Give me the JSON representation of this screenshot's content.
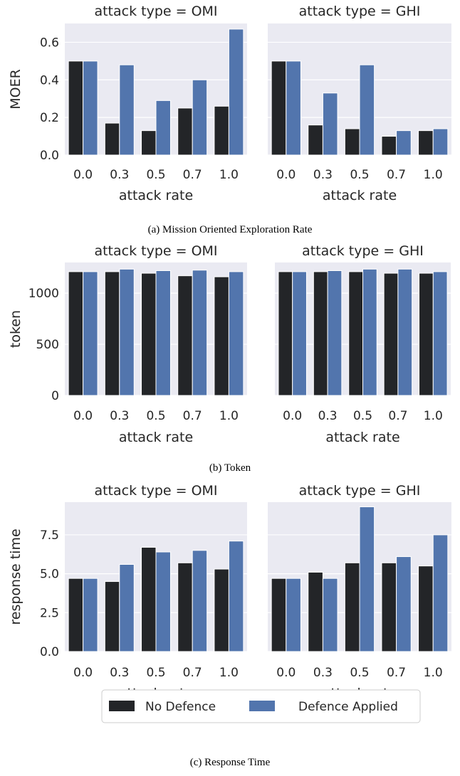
{
  "colors": {
    "no_defence": "#232528",
    "defence_applied": "#5275ad",
    "panel_bg": "#eaeaf2",
    "grid": "#ffffff",
    "text": "#262626"
  },
  "legend": {
    "placement": "bottom-center",
    "entries": [
      "No Defence",
      "Defence Applied"
    ]
  },
  "chart_data": [
    {
      "type": "bar",
      "caption": "(a) Mission Oriented Exploration Rate",
      "ylabel": "MOER",
      "xlabel": "attack rate",
      "ylim": [
        0,
        0.7
      ],
      "yticks": [
        0.0,
        0.2,
        0.4,
        0.6
      ],
      "ytick_labels": [
        "0.0",
        "0.2",
        "0.4",
        "0.6"
      ],
      "categories": [
        "0.0",
        "0.3",
        "0.5",
        "0.7",
        "1.0"
      ],
      "grid": true,
      "panels": [
        {
          "title": "attack type = OMI",
          "series": [
            {
              "name": "No Defence",
              "values": [
                0.5,
                0.17,
                0.13,
                0.25,
                0.26
              ]
            },
            {
              "name": "Defence Applied",
              "values": [
                0.5,
                0.48,
                0.29,
                0.4,
                0.67
              ]
            }
          ]
        },
        {
          "title": "attack type = GHI",
          "series": [
            {
              "name": "No Defence",
              "values": [
                0.5,
                0.16,
                0.14,
                0.1,
                0.13
              ]
            },
            {
              "name": "Defence Applied",
              "values": [
                0.5,
                0.33,
                0.48,
                0.13,
                0.14
              ]
            }
          ]
        }
      ]
    },
    {
      "type": "bar",
      "caption": "(b) Token",
      "ylabel": "token",
      "xlabel": "attack rate",
      "ylim": [
        0,
        1300
      ],
      "yticks": [
        0,
        500,
        1000
      ],
      "ytick_labels": [
        "0",
        "500",
        "1000"
      ],
      "categories": [
        "0.0",
        "0.3",
        "0.5",
        "0.7",
        "1.0"
      ],
      "grid": true,
      "panels": [
        {
          "title": "attack type = OMI",
          "series": [
            {
              "name": "No Defence",
              "values": [
                1210,
                1210,
                1195,
                1170,
                1160
              ]
            },
            {
              "name": "Defence Applied",
              "values": [
                1210,
                1235,
                1220,
                1225,
                1210
              ]
            }
          ]
        },
        {
          "title": "attack type = GHI",
          "series": [
            {
              "name": "No Defence",
              "values": [
                1210,
                1210,
                1210,
                1195,
                1195
              ]
            },
            {
              "name": "Defence Applied",
              "values": [
                1210,
                1220,
                1235,
                1235,
                1210
              ]
            }
          ]
        }
      ]
    },
    {
      "type": "bar",
      "caption": "(c) Response Time",
      "ylabel": "response time",
      "xlabel": "attack rate",
      "ylim": [
        0,
        9.6
      ],
      "yticks": [
        0.0,
        2.5,
        5.0,
        7.5
      ],
      "ytick_labels": [
        "0.0",
        "2.5",
        "5.0",
        "7.5"
      ],
      "categories": [
        "0.0",
        "0.3",
        "0.5",
        "0.7",
        "1.0"
      ],
      "grid": true,
      "panels": [
        {
          "title": "attack type = OMI",
          "series": [
            {
              "name": "No Defence",
              "values": [
                4.7,
                4.5,
                6.7,
                5.7,
                5.3
              ]
            },
            {
              "name": "Defence Applied",
              "values": [
                4.7,
                5.6,
                6.4,
                6.5,
                7.1
              ]
            }
          ]
        },
        {
          "title": "attack type = GHI",
          "series": [
            {
              "name": "No Defence",
              "values": [
                4.7,
                5.1,
                5.7,
                5.7,
                5.5
              ]
            },
            {
              "name": "Defence Applied",
              "values": [
                4.7,
                4.7,
                9.3,
                6.1,
                7.5
              ]
            }
          ]
        }
      ]
    }
  ]
}
